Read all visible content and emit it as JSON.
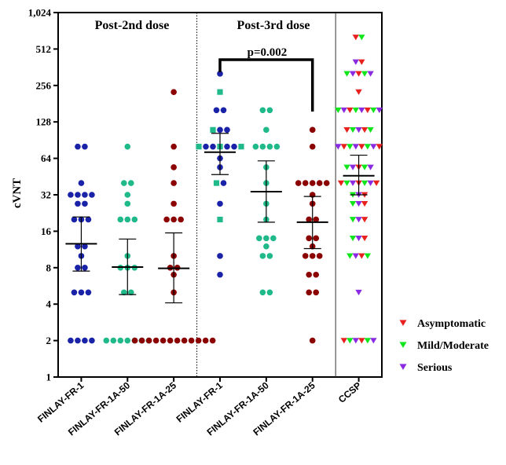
{
  "chart_data": {
    "type": "scatter",
    "ylabel": "cVNT",
    "y_scale": "log2",
    "ylim": [
      1,
      1024
    ],
    "y_ticks": [
      "1",
      "2",
      "4",
      "8",
      "16",
      "32",
      "64",
      "128",
      "256",
      "512",
      "1,024"
    ],
    "y_tick_values": [
      1,
      2,
      4,
      8,
      16,
      32,
      64,
      128,
      256,
      512,
      1024
    ],
    "categories": [
      "FINLAY-FR-1",
      "FINLAY-FR-1A-50",
      "FINLAY-FR-1A-25",
      "FINLAY-FR-1",
      "FINLAY-FR-1A-50",
      "FINLAY-FR-1A-25",
      "CCSP"
    ],
    "panel_titles": [
      "Post-2nd dose",
      "Post-3rd dose"
    ],
    "annotation": "p=0.002",
    "groups": [
      {
        "color": "#1a23a8",
        "marker": "circle",
        "values": [
          80,
          80,
          40,
          32,
          32,
          32,
          32,
          27,
          27,
          20,
          20,
          20,
          12,
          12,
          10,
          8,
          8,
          5,
          5,
          5,
          2,
          2,
          2,
          2
        ],
        "mean": 12.6,
        "ci": [
          7.5,
          21
        ]
      },
      {
        "color": "#1fb98a",
        "marker": "circle",
        "values": [
          80,
          40,
          40,
          32,
          27,
          20,
          20,
          20,
          10,
          8,
          8,
          8,
          5,
          5,
          2,
          2,
          2,
          2,
          2,
          2,
          2
        ],
        "mean": 8.1,
        "ci": [
          4.8,
          13.8
        ]
      },
      {
        "color": "#8b0000",
        "marker": "circle",
        "values": [
          226,
          80,
          54,
          40,
          27,
          20,
          20,
          20,
          10,
          8,
          8,
          7,
          5,
          2,
          2,
          2,
          2,
          2,
          2,
          2,
          2,
          2,
          2,
          2,
          2
        ],
        "mean": 7.9,
        "ci": [
          4.1,
          15.5
        ]
      },
      {
        "color": "#1a23a8",
        "marker": "mixed",
        "values": [
          320,
          226,
          160,
          160,
          110,
          110,
          110,
          80,
          80,
          80,
          80,
          80,
          80,
          80,
          64,
          54,
          40,
          40,
          27,
          20,
          10,
          7
        ],
        "mean": 72,
        "ci": [
          47,
          103
        ]
      },
      {
        "color": "#1fb98a",
        "marker": "circle",
        "values": [
          160,
          160,
          110,
          80,
          80,
          80,
          80,
          54,
          40,
          27,
          20,
          14,
          14,
          14,
          12,
          10,
          10,
          5,
          5
        ],
        "mean": 34,
        "ci": [
          19,
          61
        ]
      },
      {
        "color": "#8b0000",
        "marker": "circle",
        "values": [
          110,
          80,
          40,
          40,
          40,
          40,
          40,
          32,
          27,
          20,
          20,
          14,
          14,
          12,
          10,
          10,
          10,
          7,
          7,
          5,
          5,
          2
        ],
        "mean": 19,
        "ci": [
          11.5,
          31
        ]
      },
      {
        "color": "multi",
        "marker": "triangle-down",
        "values": [
          640,
          640,
          400,
          400,
          320,
          320,
          320,
          320,
          320,
          226,
          160,
          160,
          160,
          160,
          160,
          160,
          160,
          160,
          110,
          110,
          110,
          110,
          110,
          80,
          80,
          80,
          80,
          80,
          80,
          80,
          80,
          54,
          54,
          54,
          54,
          54,
          40,
          40,
          40,
          40,
          40,
          40,
          40,
          32,
          32,
          32,
          27,
          27,
          27,
          20,
          20,
          20,
          14,
          14,
          14,
          10,
          10,
          10,
          10,
          5,
          2,
          2,
          2,
          2,
          2,
          2
        ],
        "mean": 46,
        "ci": [
          32,
          68
        ]
      }
    ],
    "legend": {
      "position": "right",
      "entries": [
        {
          "label": "Asymptomatic",
          "color": "#e8211f"
        },
        {
          "label": "Mild/Moderate",
          "color": "#11e61c"
        },
        {
          "label": "Serious",
          "color": "#8a2be2"
        }
      ]
    }
  }
}
